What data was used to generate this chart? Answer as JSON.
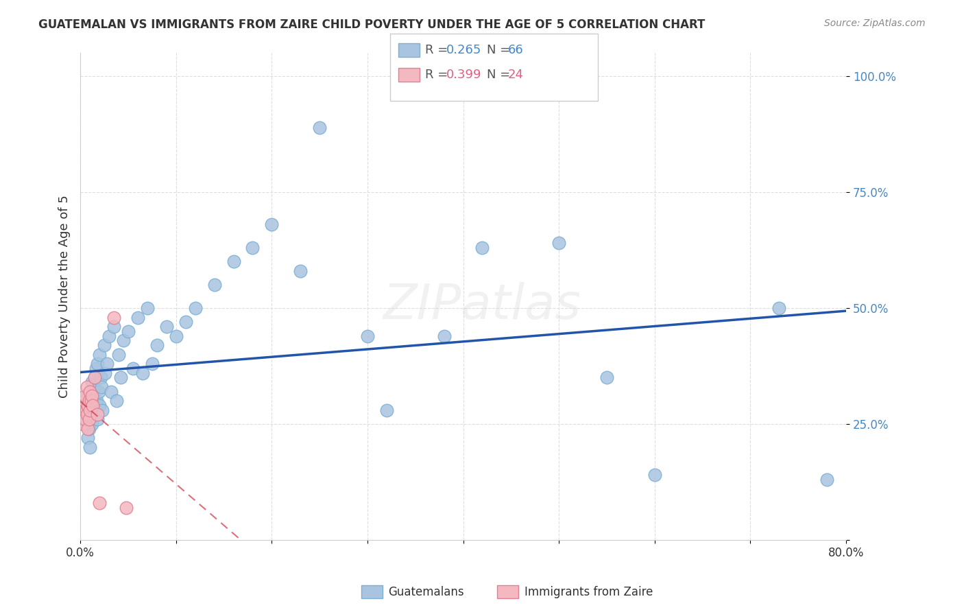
{
  "title": "GUATEMALAN VS IMMIGRANTS FROM ZAIRE CHILD POVERTY UNDER THE AGE OF 5 CORRELATION CHART",
  "source": "Source: ZipAtlas.com",
  "ylabel": "Child Poverty Under the Age of 5",
  "xlim": [
    0.0,
    0.8
  ],
  "ylim": [
    0.0,
    1.05
  ],
  "ytick_positions": [
    0.0,
    0.25,
    0.5,
    0.75,
    1.0
  ],
  "yticklabels": [
    "",
    "25.0%",
    "50.0%",
    "75.0%",
    "100.0%"
  ],
  "color_blue": "#a8c4e0",
  "color_pink": "#f4b8c1",
  "color_blue_edge": "#7bafd4",
  "color_pink_edge": "#e08090",
  "trendline_blue": "#2255aa",
  "trendline_pink": "#cc3344",
  "background_color": "#ffffff",
  "grid_color": "#dddddd",
  "guatemalan_x": [
    0.004,
    0.005,
    0.006,
    0.007,
    0.007,
    0.008,
    0.008,
    0.009,
    0.009,
    0.01,
    0.01,
    0.01,
    0.011,
    0.012,
    0.012,
    0.013,
    0.013,
    0.014,
    0.015,
    0.015,
    0.016,
    0.017,
    0.018,
    0.018,
    0.019,
    0.02,
    0.02,
    0.021,
    0.022,
    0.023,
    0.025,
    0.026,
    0.028,
    0.03,
    0.032,
    0.035,
    0.038,
    0.04,
    0.042,
    0.045,
    0.05,
    0.055,
    0.06,
    0.065,
    0.07,
    0.075,
    0.08,
    0.09,
    0.1,
    0.11,
    0.12,
    0.14,
    0.16,
    0.18,
    0.2,
    0.23,
    0.25,
    0.3,
    0.32,
    0.38,
    0.42,
    0.5,
    0.55,
    0.6,
    0.73,
    0.78
  ],
  "guatemalan_y": [
    0.29,
    0.27,
    0.25,
    0.31,
    0.26,
    0.28,
    0.22,
    0.3,
    0.24,
    0.27,
    0.32,
    0.2,
    0.29,
    0.34,
    0.25,
    0.31,
    0.27,
    0.33,
    0.35,
    0.28,
    0.37,
    0.3,
    0.38,
    0.26,
    0.32,
    0.4,
    0.29,
    0.35,
    0.33,
    0.28,
    0.42,
    0.36,
    0.38,
    0.44,
    0.32,
    0.46,
    0.3,
    0.4,
    0.35,
    0.43,
    0.45,
    0.37,
    0.48,
    0.36,
    0.5,
    0.38,
    0.42,
    0.46,
    0.44,
    0.47,
    0.5,
    0.55,
    0.6,
    0.63,
    0.68,
    0.58,
    0.89,
    0.44,
    0.28,
    0.44,
    0.63,
    0.64,
    0.35,
    0.14,
    0.5,
    0.13
  ],
  "zaire_x": [
    0.002,
    0.003,
    0.003,
    0.004,
    0.004,
    0.005,
    0.005,
    0.006,
    0.007,
    0.007,
    0.008,
    0.008,
    0.009,
    0.009,
    0.01,
    0.01,
    0.011,
    0.012,
    0.013,
    0.015,
    0.018,
    0.02,
    0.035,
    0.048
  ],
  "zaire_y": [
    0.27,
    0.29,
    0.25,
    0.28,
    0.3,
    0.31,
    0.26,
    0.28,
    0.33,
    0.27,
    0.29,
    0.24,
    0.3,
    0.26,
    0.32,
    0.28,
    0.3,
    0.31,
    0.29,
    0.35,
    0.27,
    0.08,
    0.48,
    0.07
  ]
}
